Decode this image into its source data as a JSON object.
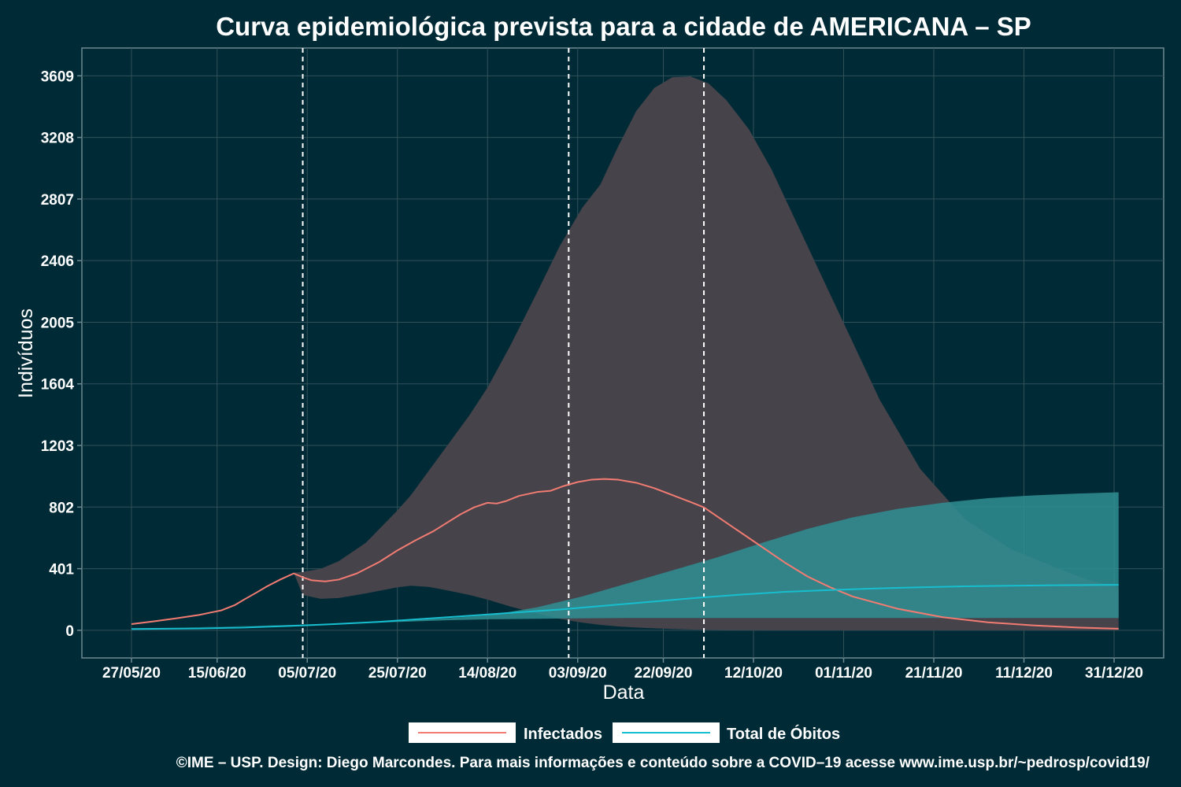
{
  "chart_data": {
    "type": "line",
    "title": "Curva epidemiológica prevista para a cidade de AMERICANA – SP",
    "xlabel": "Data",
    "ylabel": "Indivíduos",
    "x_tick_labels": [
      "27/05/20",
      "15/06/20",
      "05/07/20",
      "25/07/20",
      "14/08/20",
      "03/09/20",
      "22/09/20",
      "12/10/20",
      "01/11/20",
      "21/11/20",
      "11/12/20",
      "31/12/20"
    ],
    "x_tick_days": [
      0,
      19,
      39,
      59,
      79,
      99,
      118,
      138,
      158,
      178,
      198,
      218
    ],
    "x_range_days": [
      -11,
      229
    ],
    "x_data_start": "27/05/20",
    "y_ticks": [
      0,
      401,
      802,
      1203,
      1604,
      2005,
      2406,
      2807,
      3208,
      3609
    ],
    "ylim": [
      -180,
      3790
    ],
    "grid": true,
    "legend_position": "bottom",
    "vertical_markers_days": [
      38,
      97,
      127
    ],
    "series": [
      {
        "name": "Infectados",
        "color": "#f27b72",
        "points": [
          [
            0,
            40
          ],
          [
            5,
            58
          ],
          [
            10,
            78
          ],
          [
            15,
            100
          ],
          [
            18,
            118
          ],
          [
            20,
            130
          ],
          [
            23,
            165
          ],
          [
            25,
            200
          ],
          [
            28,
            250
          ],
          [
            30,
            285
          ],
          [
            33,
            330
          ],
          [
            36,
            370
          ],
          [
            38,
            345
          ],
          [
            40,
            325
          ],
          [
            43,
            318
          ],
          [
            46,
            330
          ],
          [
            50,
            370
          ],
          [
            55,
            445
          ],
          [
            59,
            520
          ],
          [
            63,
            585
          ],
          [
            67,
            645
          ],
          [
            70,
            700
          ],
          [
            73,
            755
          ],
          [
            76,
            800
          ],
          [
            79,
            830
          ],
          [
            81,
            825
          ],
          [
            83,
            840
          ],
          [
            86,
            875
          ],
          [
            90,
            900
          ],
          [
            93,
            908
          ],
          [
            96,
            940
          ],
          [
            99,
            965
          ],
          [
            102,
            980
          ],
          [
            105,
            985
          ],
          [
            108,
            980
          ],
          [
            112,
            960
          ],
          [
            116,
            925
          ],
          [
            120,
            880
          ],
          [
            124,
            835
          ],
          [
            127,
            800
          ],
          [
            130,
            740
          ],
          [
            134,
            660
          ],
          [
            138,
            580
          ],
          [
            145,
            440
          ],
          [
            150,
            350
          ],
          [
            155,
            280
          ],
          [
            160,
            220
          ],
          [
            170,
            140
          ],
          [
            180,
            85
          ],
          [
            190,
            52
          ],
          [
            200,
            32
          ],
          [
            210,
            18
          ],
          [
            219,
            10
          ]
        ],
        "band": [
          [
            0,
            38,
            38
          ],
          [
            36,
            375,
            375
          ],
          [
            38,
            230,
            380
          ],
          [
            42,
            205,
            400
          ],
          [
            46,
            210,
            450
          ],
          [
            52,
            240,
            570
          ],
          [
            59,
            280,
            780
          ],
          [
            62,
            290,
            880
          ],
          [
            66,
            282,
            1040
          ],
          [
            70,
            260,
            1200
          ],
          [
            75,
            230,
            1400
          ],
          [
            79,
            200,
            1580
          ],
          [
            84,
            155,
            1850
          ],
          [
            90,
            110,
            2200
          ],
          [
            95,
            75,
            2500
          ],
          [
            100,
            50,
            2750
          ],
          [
            104,
            35,
            2900
          ],
          [
            108,
            25,
            3150
          ],
          [
            112,
            18,
            3380
          ],
          [
            116,
            13,
            3530
          ],
          [
            120,
            8,
            3600
          ],
          [
            124,
            5,
            3605
          ],
          [
            128,
            3,
            3560
          ],
          [
            132,
            2,
            3450
          ],
          [
            137,
            1,
            3260
          ],
          [
            142,
            0,
            3000
          ],
          [
            150,
            0,
            2500
          ],
          [
            158,
            0,
            2000
          ],
          [
            166,
            0,
            1500
          ],
          [
            175,
            0,
            1050
          ],
          [
            185,
            0,
            720
          ],
          [
            195,
            0,
            530
          ],
          [
            205,
            0,
            410
          ],
          [
            212,
            0,
            330
          ],
          [
            219,
            0,
            280
          ]
        ]
      },
      {
        "name": "Total de Óbitos",
        "color": "#17becf",
        "points": [
          [
            0,
            8
          ],
          [
            15,
            12
          ],
          [
            25,
            18
          ],
          [
            35,
            28
          ],
          [
            45,
            40
          ],
          [
            55,
            55
          ],
          [
            65,
            75
          ],
          [
            75,
            95
          ],
          [
            85,
            115
          ],
          [
            95,
            135
          ],
          [
            105,
            160
          ],
          [
            115,
            185
          ],
          [
            125,
            210
          ],
          [
            135,
            232
          ],
          [
            145,
            250
          ],
          [
            155,
            262
          ],
          [
            165,
            272
          ],
          [
            175,
            280
          ],
          [
            185,
            286
          ],
          [
            195,
            290
          ],
          [
            205,
            293
          ],
          [
            219,
            296
          ]
        ],
        "band": [
          [
            0,
            8,
            8
          ],
          [
            45,
            40,
            42
          ],
          [
            60,
            55,
            62
          ],
          [
            70,
            65,
            78
          ],
          [
            80,
            72,
            100
          ],
          [
            90,
            75,
            150
          ],
          [
            100,
            78,
            220
          ],
          [
            110,
            80,
            305
          ],
          [
            120,
            80,
            390
          ],
          [
            130,
            80,
            475
          ],
          [
            140,
            80,
            570
          ],
          [
            150,
            80,
            660
          ],
          [
            160,
            80,
            735
          ],
          [
            170,
            80,
            790
          ],
          [
            180,
            80,
            830
          ],
          [
            190,
            80,
            860
          ],
          [
            200,
            80,
            878
          ],
          [
            210,
            80,
            890
          ],
          [
            219,
            80,
            898
          ]
        ]
      }
    ]
  },
  "legend": {
    "items": [
      {
        "label": "Infectados",
        "color": "#f27b72"
      },
      {
        "label": "Total de Óbitos",
        "color": "#17becf"
      }
    ]
  },
  "caption": "©IME – USP. Design: Diego Marcondes. Para mais informações e conteúdo sobre a COVID–19 acesse www.ime.usp.br/~pedrosp/covid19/",
  "colors": {
    "background": "#002b36",
    "infected_band": "#46434b",
    "deaths_band": "#2f8f93",
    "grid": "#33515a"
  }
}
